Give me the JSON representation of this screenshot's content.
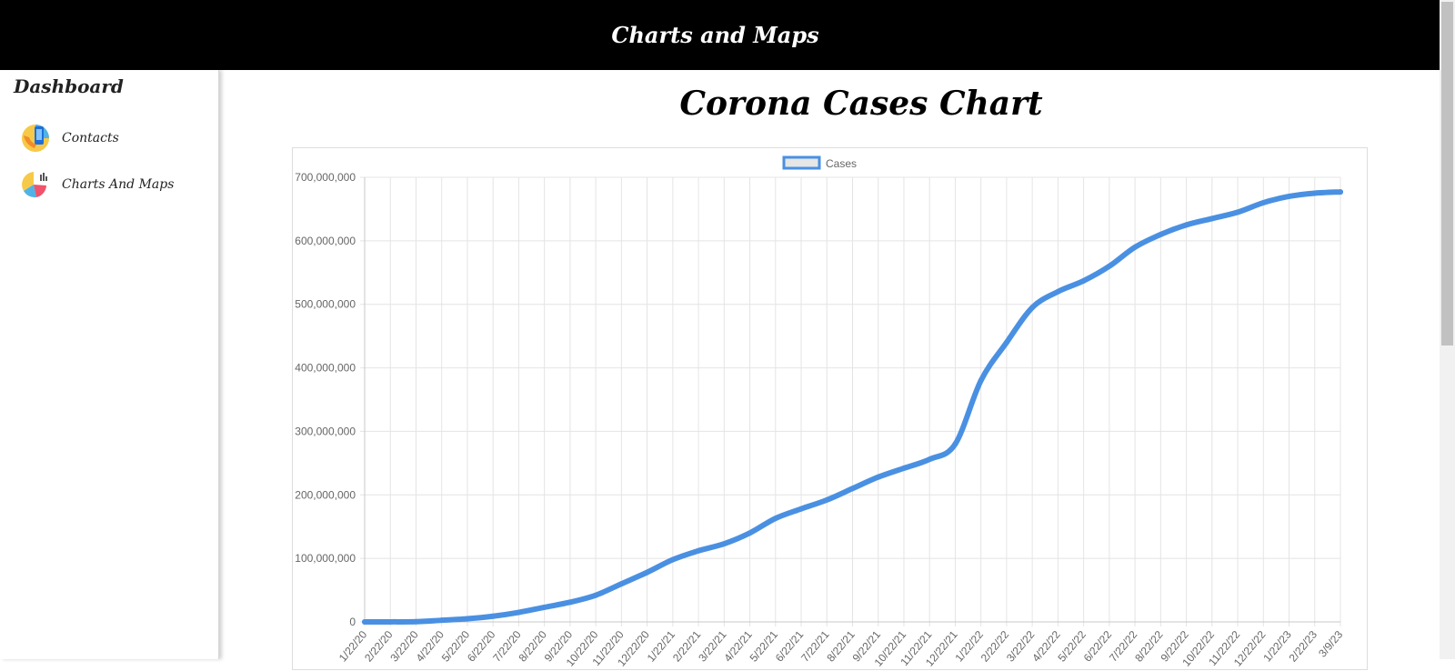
{
  "header": {
    "title": "Charts and Maps"
  },
  "sidebar": {
    "heading": "Dashboard",
    "items": [
      {
        "label": "Contacts",
        "icon": "contacts-phone-icon"
      },
      {
        "label": "Charts And Maps",
        "icon": "pie-chart-icon"
      }
    ]
  },
  "main": {
    "title": "Corona Cases Chart"
  },
  "colors": {
    "series": "#4a90e2",
    "legend_fill": "#e6e6e6",
    "header_bg": "#000000"
  },
  "chart_data": {
    "type": "line",
    "title": "",
    "xlabel": "",
    "ylabel": "",
    "ylim": [
      0,
      700000000
    ],
    "yticks": [
      0,
      100000000,
      200000000,
      300000000,
      400000000,
      500000000,
      600000000,
      700000000
    ],
    "ytick_labels": [
      "0",
      "100,000,000",
      "200,000,000",
      "300,000,000",
      "400,000,000",
      "500,000,000",
      "600,000,000",
      "700,000,000"
    ],
    "legend": {
      "position": "top",
      "entries": [
        "Cases"
      ]
    },
    "grid": true,
    "x": [
      "1/22/20",
      "2/22/20",
      "3/22/20",
      "4/22/20",
      "5/22/20",
      "6/22/20",
      "7/22/20",
      "8/22/20",
      "9/22/20",
      "10/22/20",
      "11/22/20",
      "12/22/20",
      "1/22/21",
      "2/22/21",
      "3/22/21",
      "4/22/21",
      "5/22/21",
      "6/22/21",
      "7/22/21",
      "8/22/21",
      "9/22/21",
      "10/22/21",
      "11/22/21",
      "12/22/21",
      "1/22/22",
      "2/22/22",
      "3/22/22",
      "4/22/22",
      "5/22/22",
      "6/22/22",
      "7/22/22",
      "8/22/22",
      "9/22/22",
      "10/22/22",
      "11/22/22",
      "12/22/22",
      "1/22/23",
      "2/22/23",
      "3/9/23"
    ],
    "series": [
      {
        "name": "Cases",
        "values": [
          600,
          80000,
          350000,
          2600000,
          5000000,
          9000000,
          15000000,
          23000000,
          31000000,
          42000000,
          60000000,
          78000000,
          98000000,
          112000000,
          123000000,
          140000000,
          163000000,
          178000000,
          192000000,
          210000000,
          228000000,
          242000000,
          256000000,
          280000000,
          380000000,
          440000000,
          495000000,
          520000000,
          537000000,
          560000000,
          590000000,
          610000000,
          625000000,
          635000000,
          645000000,
          660000000,
          670000000,
          675000000,
          677000000
        ]
      }
    ]
  }
}
